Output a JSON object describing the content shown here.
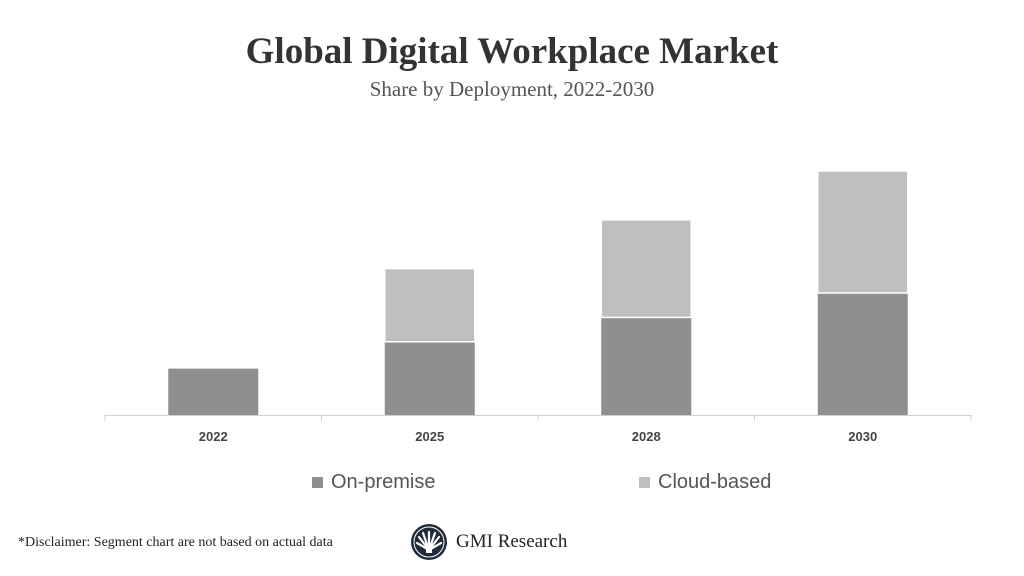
{
  "chart_data": {
    "type": "bar",
    "stacked": true,
    "title": "Global Digital Workplace Market",
    "subtitle": "Share by Deployment, 2022-2030",
    "categories": [
      "2022",
      "2025",
      "2028",
      "2030"
    ],
    "series": [
      {
        "name": "On-premise",
        "values": [
          1.9,
          3.0,
          4.0,
          5.0
        ],
        "color": "#8f8f8f"
      },
      {
        "name": "Cloud-based",
        "values": [
          0,
          3.0,
          4.0,
          5.0
        ],
        "color": "#bfbfbf"
      }
    ],
    "ylim": [
      0,
      10
    ],
    "grid": false,
    "legend": "bottom"
  },
  "disclaimer": "*Disclaimer:  Segment chart are not based on actual data",
  "logo": {
    "name": "GMI Research",
    "icon": "fan-logo-icon"
  }
}
